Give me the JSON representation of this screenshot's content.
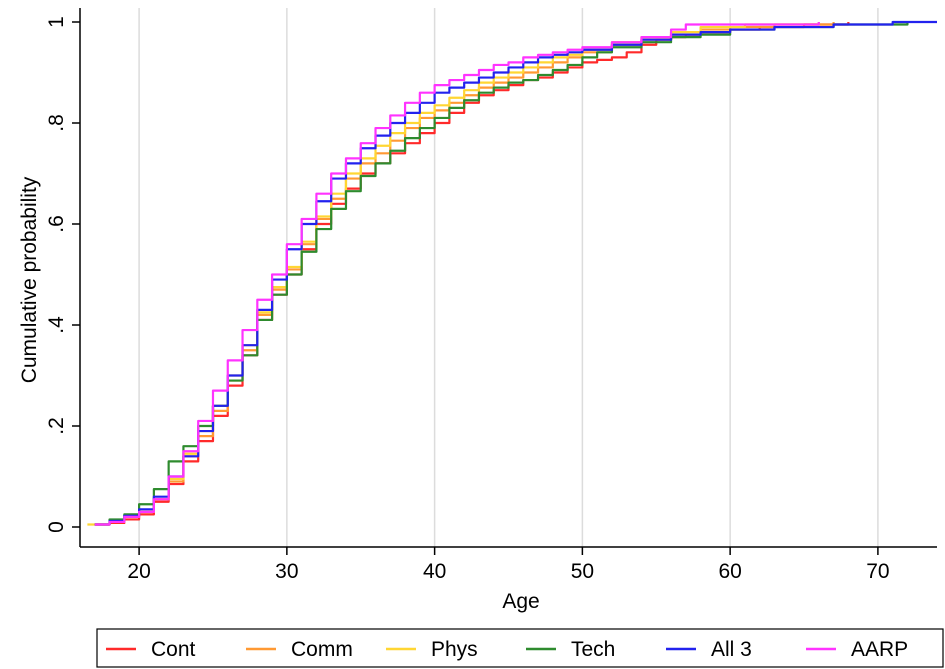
{
  "chart_data": {
    "type": "line",
    "title": "",
    "xlabel": "Age",
    "ylabel": "Cumulative probability",
    "xlim": [
      16,
      74
    ],
    "ylim": [
      0,
      1
    ],
    "x_ticks": [
      20,
      30,
      40,
      50,
      60,
      70
    ],
    "x_tick_labels": [
      "20",
      "30",
      "40",
      "50",
      "60",
      "70"
    ],
    "y_ticks": [
      0,
      0.2,
      0.4,
      0.6,
      0.8,
      1
    ],
    "y_tick_labels": [
      "0",
      ".2",
      ".4",
      ".6",
      ".8",
      "1"
    ],
    "grid": "vertical",
    "legend_position": "bottom",
    "series": [
      {
        "name": "Cont",
        "color": "#ff2a2a",
        "points": [
          [
            17,
            0.005
          ],
          [
            18,
            0.008
          ],
          [
            19,
            0.015
          ],
          [
            20,
            0.025
          ],
          [
            21,
            0.05
          ],
          [
            22,
            0.085
          ],
          [
            23,
            0.13
          ],
          [
            24,
            0.17
          ],
          [
            25,
            0.22
          ],
          [
            26,
            0.28
          ],
          [
            27,
            0.34
          ],
          [
            28,
            0.41
          ],
          [
            29,
            0.46
          ],
          [
            30,
            0.5
          ],
          [
            31,
            0.55
          ],
          [
            32,
            0.6
          ],
          [
            33,
            0.64
          ],
          [
            34,
            0.67
          ],
          [
            35,
            0.7
          ],
          [
            36,
            0.72
          ],
          [
            37,
            0.74
          ],
          [
            38,
            0.76
          ],
          [
            39,
            0.78
          ],
          [
            40,
            0.8
          ],
          [
            41,
            0.82
          ],
          [
            42,
            0.84
          ],
          [
            43,
            0.855
          ],
          [
            44,
            0.865
          ],
          [
            45,
            0.875
          ],
          [
            46,
            0.885
          ],
          [
            47,
            0.89
          ],
          [
            48,
            0.9
          ],
          [
            49,
            0.91
          ],
          [
            50,
            0.92
          ],
          [
            51,
            0.925
          ],
          [
            52,
            0.93
          ],
          [
            53,
            0.94
          ],
          [
            54,
            0.955
          ],
          [
            55,
            0.965
          ],
          [
            56,
            0.97
          ],
          [
            57,
            0.975
          ],
          [
            58,
            0.98
          ],
          [
            60,
            0.985
          ],
          [
            62,
            0.99
          ],
          [
            65,
            0.995
          ],
          [
            68,
            1
          ]
        ]
      },
      {
        "name": "Comm",
        "color": "#ff9933",
        "points": [
          [
            17,
            0.005
          ],
          [
            18,
            0.01
          ],
          [
            19,
            0.02
          ],
          [
            20,
            0.03
          ],
          [
            21,
            0.055
          ],
          [
            22,
            0.09
          ],
          [
            23,
            0.14
          ],
          [
            24,
            0.18
          ],
          [
            25,
            0.23
          ],
          [
            26,
            0.29
          ],
          [
            27,
            0.35
          ],
          [
            28,
            0.42
          ],
          [
            29,
            0.47
          ],
          [
            30,
            0.51
          ],
          [
            31,
            0.56
          ],
          [
            32,
            0.61
          ],
          [
            33,
            0.65
          ],
          [
            34,
            0.69
          ],
          [
            35,
            0.72
          ],
          [
            36,
            0.74
          ],
          [
            37,
            0.765
          ],
          [
            38,
            0.79
          ],
          [
            39,
            0.81
          ],
          [
            40,
            0.825
          ],
          [
            41,
            0.84
          ],
          [
            42,
            0.855
          ],
          [
            43,
            0.87
          ],
          [
            44,
            0.88
          ],
          [
            45,
            0.89
          ],
          [
            46,
            0.9
          ],
          [
            47,
            0.91
          ],
          [
            48,
            0.92
          ],
          [
            49,
            0.93
          ],
          [
            50,
            0.94
          ],
          [
            52,
            0.955
          ],
          [
            54,
            0.965
          ],
          [
            56,
            0.975
          ],
          [
            58,
            0.985
          ],
          [
            60,
            0.99
          ],
          [
            63,
            0.995
          ],
          [
            67,
            1
          ]
        ]
      },
      {
        "name": "Phys",
        "color": "#ffd633",
        "points": [
          [
            16.5,
            0.005
          ],
          [
            18,
            0.01
          ],
          [
            19,
            0.02
          ],
          [
            20,
            0.03
          ],
          [
            21,
            0.055
          ],
          [
            22,
            0.095
          ],
          [
            23,
            0.145
          ],
          [
            24,
            0.19
          ],
          [
            25,
            0.24
          ],
          [
            26,
            0.3
          ],
          [
            27,
            0.36
          ],
          [
            28,
            0.425
          ],
          [
            29,
            0.475
          ],
          [
            30,
            0.515
          ],
          [
            31,
            0.565
          ],
          [
            32,
            0.615
          ],
          [
            33,
            0.66
          ],
          [
            34,
            0.7
          ],
          [
            35,
            0.73
          ],
          [
            36,
            0.755
          ],
          [
            37,
            0.78
          ],
          [
            38,
            0.8
          ],
          [
            39,
            0.82
          ],
          [
            40,
            0.835
          ],
          [
            41,
            0.85
          ],
          [
            42,
            0.865
          ],
          [
            43,
            0.88
          ],
          [
            44,
            0.89
          ],
          [
            45,
            0.9
          ],
          [
            46,
            0.91
          ],
          [
            47,
            0.92
          ],
          [
            48,
            0.93
          ],
          [
            49,
            0.935
          ],
          [
            50,
            0.945
          ],
          [
            52,
            0.96
          ],
          [
            54,
            0.97
          ],
          [
            56,
            0.98
          ],
          [
            58,
            0.99
          ],
          [
            61,
            0.995
          ],
          [
            66,
            1
          ]
        ]
      },
      {
        "name": "Tech",
        "color": "#2e8b2e",
        "points": [
          [
            17,
            0.005
          ],
          [
            18,
            0.015
          ],
          [
            19,
            0.025
          ],
          [
            20,
            0.045
          ],
          [
            21,
            0.075
          ],
          [
            22,
            0.13
          ],
          [
            23,
            0.16
          ],
          [
            24,
            0.2
          ],
          [
            25,
            0.24
          ],
          [
            26,
            0.29
          ],
          [
            27,
            0.34
          ],
          [
            28,
            0.41
          ],
          [
            29,
            0.46
          ],
          [
            30,
            0.5
          ],
          [
            31,
            0.545
          ],
          [
            32,
            0.59
          ],
          [
            33,
            0.63
          ],
          [
            34,
            0.665
          ],
          [
            35,
            0.695
          ],
          [
            36,
            0.72
          ],
          [
            37,
            0.745
          ],
          [
            38,
            0.77
          ],
          [
            39,
            0.79
          ],
          [
            40,
            0.81
          ],
          [
            41,
            0.83
          ],
          [
            42,
            0.845
          ],
          [
            43,
            0.86
          ],
          [
            44,
            0.87
          ],
          [
            45,
            0.88
          ],
          [
            46,
            0.885
          ],
          [
            47,
            0.895
          ],
          [
            48,
            0.905
          ],
          [
            49,
            0.915
          ],
          [
            50,
            0.93
          ],
          [
            51,
            0.94
          ],
          [
            52,
            0.95
          ],
          [
            54,
            0.96
          ],
          [
            56,
            0.97
          ],
          [
            58,
            0.975
          ],
          [
            60,
            0.985
          ],
          [
            63,
            0.99
          ],
          [
            67,
            0.995
          ],
          [
            72,
            1
          ]
        ]
      },
      {
        "name": "All 3",
        "color": "#2222ee",
        "points": [
          [
            17,
            0.005
          ],
          [
            18,
            0.012
          ],
          [
            19,
            0.022
          ],
          [
            20,
            0.035
          ],
          [
            21,
            0.06
          ],
          [
            22,
            0.1
          ],
          [
            23,
            0.14
          ],
          [
            24,
            0.19
          ],
          [
            25,
            0.24
          ],
          [
            26,
            0.3
          ],
          [
            27,
            0.36
          ],
          [
            28,
            0.43
          ],
          [
            29,
            0.49
          ],
          [
            30,
            0.55
          ],
          [
            31,
            0.6
          ],
          [
            32,
            0.645
          ],
          [
            33,
            0.69
          ],
          [
            34,
            0.72
          ],
          [
            35,
            0.75
          ],
          [
            36,
            0.775
          ],
          [
            37,
            0.8
          ],
          [
            38,
            0.82
          ],
          [
            39,
            0.84
          ],
          [
            40,
            0.86
          ],
          [
            41,
            0.87
          ],
          [
            42,
            0.88
          ],
          [
            43,
            0.89
          ],
          [
            44,
            0.9
          ],
          [
            45,
            0.91
          ],
          [
            46,
            0.92
          ],
          [
            47,
            0.93
          ],
          [
            48,
            0.935
          ],
          [
            49,
            0.94
          ],
          [
            50,
            0.945
          ],
          [
            52,
            0.955
          ],
          [
            54,
            0.965
          ],
          [
            56,
            0.975
          ],
          [
            58,
            0.98
          ],
          [
            60,
            0.985
          ],
          [
            63,
            0.99
          ],
          [
            67,
            0.995
          ],
          [
            71,
            1
          ],
          [
            74,
            1
          ]
        ]
      },
      {
        "name": "AARP",
        "color": "#ff33ff",
        "points": [
          [
            17,
            0.005
          ],
          [
            18,
            0.01
          ],
          [
            19,
            0.02
          ],
          [
            20,
            0.03
          ],
          [
            21,
            0.055
          ],
          [
            22,
            0.1
          ],
          [
            23,
            0.15
          ],
          [
            24,
            0.21
          ],
          [
            25,
            0.27
          ],
          [
            26,
            0.33
          ],
          [
            27,
            0.39
          ],
          [
            28,
            0.45
          ],
          [
            29,
            0.5
          ],
          [
            30,
            0.56
          ],
          [
            31,
            0.61
          ],
          [
            32,
            0.66
          ],
          [
            33,
            0.7
          ],
          [
            34,
            0.73
          ],
          [
            35,
            0.76
          ],
          [
            36,
            0.79
          ],
          [
            37,
            0.815
          ],
          [
            38,
            0.84
          ],
          [
            39,
            0.86
          ],
          [
            40,
            0.875
          ],
          [
            41,
            0.885
          ],
          [
            42,
            0.895
          ],
          [
            43,
            0.905
          ],
          [
            44,
            0.915
          ],
          [
            45,
            0.92
          ],
          [
            46,
            0.93
          ],
          [
            47,
            0.935
          ],
          [
            48,
            0.94
          ],
          [
            49,
            0.945
          ],
          [
            50,
            0.95
          ],
          [
            52,
            0.96
          ],
          [
            54,
            0.97
          ],
          [
            56,
            0.985
          ],
          [
            57,
            0.995
          ],
          [
            60,
            0.995
          ],
          [
            66,
            1
          ]
        ]
      }
    ]
  }
}
